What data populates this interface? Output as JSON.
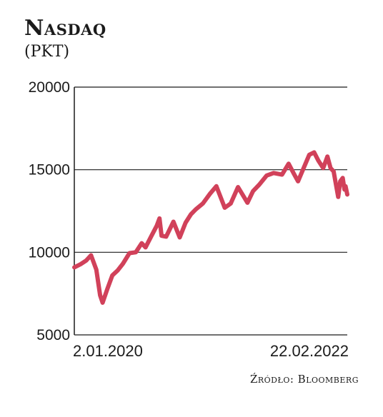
{
  "chart_data": {
    "type": "line",
    "title": "Nasdaq",
    "subtitle": "(PKT)",
    "ylim": [
      5000,
      20000
    ],
    "yticks": [
      "20000",
      "15000",
      "10000",
      "5000"
    ],
    "xtick_labels": [
      "2.01.2020",
      "22.02.2022"
    ],
    "grid": "horizontal",
    "source": "Źródło: Bloomberg",
    "line_color": "#d1415a",
    "series": [
      {
        "x": [
          "2020-01-02",
          "2020-01-20",
          "2020-02-05",
          "2020-02-19",
          "2020-03-05",
          "2020-03-16",
          "2020-03-23",
          "2020-04-06",
          "2020-04-20",
          "2020-05-05",
          "2020-05-20",
          "2020-06-08",
          "2020-06-26",
          "2020-07-13",
          "2020-07-24",
          "2020-08-10",
          "2020-08-25",
          "2020-09-02",
          "2020-09-08",
          "2020-09-21",
          "2020-10-12",
          "2020-10-30",
          "2020-11-16",
          "2020-12-01",
          "2020-12-15",
          "2021-01-04",
          "2021-01-25",
          "2021-02-12",
          "2021-03-08",
          "2021-03-25",
          "2021-04-15",
          "2021-05-12",
          "2021-05-28",
          "2021-06-15",
          "2021-07-06",
          "2021-07-26",
          "2021-08-19",
          "2021-09-07",
          "2021-09-22",
          "2021-10-04",
          "2021-10-20",
          "2021-11-05",
          "2021-11-19",
          "2021-12-01",
          "2021-12-15",
          "2021-12-27",
          "2022-01-05",
          "2022-01-14",
          "2022-01-27",
          "2022-02-02",
          "2022-02-09",
          "2022-02-14",
          "2022-02-17",
          "2022-02-22"
        ],
        "values": [
          9090,
          9280,
          9500,
          9820,
          8950,
          7400,
          6950,
          7800,
          8600,
          8900,
          9300,
          9950,
          10000,
          10550,
          10300,
          11000,
          11600,
          12050,
          11000,
          10950,
          11850,
          10900,
          11800,
          12300,
          12600,
          12950,
          13550,
          14000,
          12700,
          12950,
          13950,
          13000,
          13700,
          14100,
          14650,
          14800,
          14700,
          15360,
          14750,
          14300,
          15100,
          15900,
          16050,
          15550,
          15100,
          15800,
          15100,
          14900,
          13350,
          14300,
          14500,
          13800,
          14000,
          13500
        ]
      }
    ]
  }
}
